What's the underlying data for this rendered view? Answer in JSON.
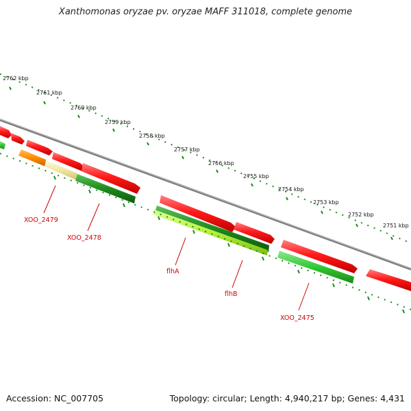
{
  "title": "Xanthomonas oryzae pv. oryzae MAFF 311018, complete genome",
  "footer": {
    "accession": "Accession: NC_007705",
    "summary": "Topology: circular; Length: 4,940,217 bp; Genes: 4,431"
  },
  "ruler": {
    "unit": "kbp",
    "ticks": [
      "2762 kbp",
      "2761 kbp",
      "2760 kbp",
      "2759 kbp",
      "2758 kbp",
      "2757 kbp",
      "2756 kbp",
      "2755 kbp",
      "2754 kbp",
      "2753 kbp",
      "2752 kbp",
      "2751 kbp"
    ]
  },
  "genes_labeled": [
    "XOO_2479",
    "XOO_2478",
    "flhA",
    "flhB",
    "XOO_2475"
  ],
  "colors": {
    "forward_strand": "#ff1a1a",
    "reverse_strand_dark": "#1e8a1e",
    "reverse_strand_light": "#a6e22e",
    "highlight_orange": "#ff8c00",
    "highlight_pale": "#f0e6a0",
    "backbone": "#7f7f7f",
    "label": "#d00000",
    "tick_outer": "#1a8a1a"
  }
}
